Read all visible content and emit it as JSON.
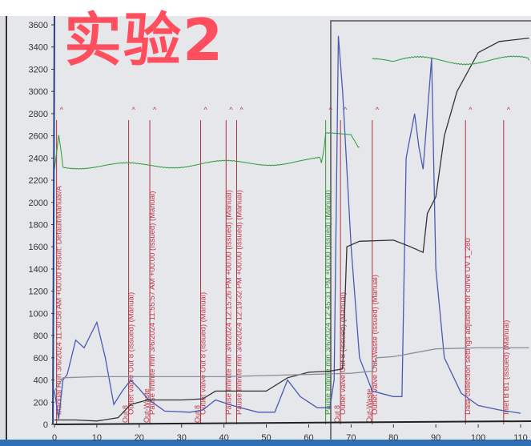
{
  "overlay_text": "实验2",
  "chart_data": {
    "type": "line",
    "title": "",
    "xlabel": "",
    "ylabel": "",
    "xlim": [
      0,
      112
    ],
    "ylim": [
      0,
      3650
    ],
    "x_ticks": [
      0,
      10,
      20,
      30,
      40,
      50,
      60,
      70,
      80,
      90,
      100,
      110
    ],
    "y_ticks": [
      0,
      200,
      400,
      600,
      800,
      1000,
      1200,
      1400,
      1600,
      1800,
      2000,
      2200,
      2400,
      2600,
      2800,
      3000,
      3200,
      3400,
      3600
    ],
    "grid": false,
    "series": [
      {
        "color": "#4a5bb0",
        "points": [
          [
            0,
            300
          ],
          [
            1,
            50
          ],
          [
            2,
            400
          ],
          [
            3,
            450
          ],
          [
            5,
            760
          ],
          [
            7,
            690
          ],
          [
            10,
            920
          ],
          [
            12,
            600
          ],
          [
            14,
            180
          ],
          [
            16,
            300
          ],
          [
            18,
            400
          ],
          [
            20,
            320
          ],
          [
            22,
            230
          ],
          [
            26,
            120
          ],
          [
            32,
            110
          ],
          [
            35,
            130
          ],
          [
            38,
            220
          ],
          [
            42,
            170
          ],
          [
            48,
            110
          ],
          [
            52,
            110
          ],
          [
            55,
            400
          ],
          [
            58,
            250
          ],
          [
            62,
            150
          ],
          [
            65,
            150
          ],
          [
            66,
            400
          ],
          [
            67,
            3500
          ],
          [
            68,
            3000
          ],
          [
            70,
            1600
          ],
          [
            72,
            600
          ],
          [
            75,
            300
          ],
          [
            80,
            250
          ],
          [
            82,
            250
          ],
          [
            83,
            2400
          ],
          [
            85,
            2800
          ],
          [
            86,
            2500
          ],
          [
            87,
            2300
          ],
          [
            88,
            2800
          ],
          [
            89,
            3300
          ],
          [
            90,
            1400
          ],
          [
            92,
            600
          ],
          [
            96,
            280
          ],
          [
            100,
            170
          ],
          [
            105,
            130
          ],
          [
            110,
            100
          ]
        ]
      },
      {
        "color": "#333333",
        "points": [
          [
            0,
            40
          ],
          [
            5,
            40
          ],
          [
            10,
            30
          ],
          [
            15,
            60
          ],
          [
            18,
            180
          ],
          [
            22,
            220
          ],
          [
            30,
            220
          ],
          [
            35,
            230
          ],
          [
            38,
            300
          ],
          [
            50,
            300
          ],
          [
            55,
            420
          ],
          [
            60,
            470
          ],
          [
            65,
            480
          ],
          [
            68,
            500
          ],
          [
            69,
            1600
          ],
          [
            72,
            1650
          ],
          [
            80,
            1660
          ],
          [
            84,
            1600
          ],
          [
            87,
            1550
          ],
          [
            88,
            1900
          ],
          [
            90,
            2050
          ],
          [
            92,
            2600
          ],
          [
            95,
            3000
          ],
          [
            100,
            3350
          ],
          [
            105,
            3450
          ],
          [
            112,
            3480
          ]
        ]
      },
      {
        "color": "#8a8f9c",
        "points": [
          [
            0,
            300
          ],
          [
            2,
            420
          ],
          [
            10,
            430
          ],
          [
            20,
            430
          ],
          [
            30,
            430
          ],
          [
            40,
            430
          ],
          [
            50,
            440
          ],
          [
            60,
            450
          ],
          [
            70,
            460
          ],
          [
            75,
            480
          ],
          [
            76,
            600
          ],
          [
            80,
            610
          ],
          [
            90,
            680
          ],
          [
            100,
            690
          ],
          [
            112,
            690
          ]
        ]
      },
      {
        "color": "#2e9a3c",
        "points": [
          [
            0,
            2300
          ],
          [
            1,
            2600
          ],
          [
            2,
            2330
          ],
          [
            10,
            2330
          ],
          [
            20,
            2330
          ],
          [
            30,
            2340
          ],
          [
            40,
            2350
          ],
          [
            50,
            2360
          ],
          [
            60,
            2370
          ],
          [
            63,
            2380
          ],
          [
            64,
            2600
          ],
          [
            70,
            2620
          ],
          [
            72,
            2500
          ]
        ],
        "noise": 30
      },
      {
        "color": "#2e9a3c",
        "points": [
          [
            75,
            3260
          ],
          [
            80,
            3270
          ],
          [
            90,
            3280
          ],
          [
            100,
            3280
          ],
          [
            112,
            3280
          ]
        ],
        "noise": 40
      }
    ],
    "events": [
      {
        "x": 0.5,
        "label": "Manual Run 3/6/2024 11:30:58 AM +00:00 Result: Default/Manual/A",
        "tag": ""
      },
      {
        "x": 17.5,
        "label": "Outlet valve Out 8 (Issued) (Manual)",
        "tag": "Out 8"
      },
      {
        "x": 22.5,
        "label": "Pause Infinite min 3/6/2024 11:55:57 AM +00:00 (Issued) (Manual)",
        "tag": "Out-Waste"
      },
      {
        "x": 34.5,
        "label": "Outlet valve Out 8 (Issued) (Manual)",
        "tag": "Out 8"
      },
      {
        "x": 40.5,
        "label": "Pause Infinite min 3/6/2024 12:15:26 PM +00:00 (Issued) (Manual)",
        "tag": ""
      },
      {
        "x": 43,
        "label": "Pause Infinite min 3/6/2024 12:19:32 PM +00:00 (Issued) (Manual)",
        "tag": ""
      },
      {
        "x": 64,
        "label": "Pause Infinite min 3/6/2024 12:45:31 PM +00:00 (Issued) (Manual)",
        "tag": ""
      },
      {
        "x": 67.5,
        "label": "Outlet valve Out 8 (Issued) (Manual)",
        "tag": "Out 8"
      },
      {
        "x": 75,
        "label": "Outlet valve Out-Waste (Issued) (Manual)",
        "tag": "Out-Waste"
      },
      {
        "x": 97,
        "label": "Data collection settings adjusted for curve UV 1_280",
        "tag": ""
      },
      {
        "x": 106,
        "label": "Inlet B B1 (Issued) (Manual)",
        "tag": ""
      }
    ]
  }
}
